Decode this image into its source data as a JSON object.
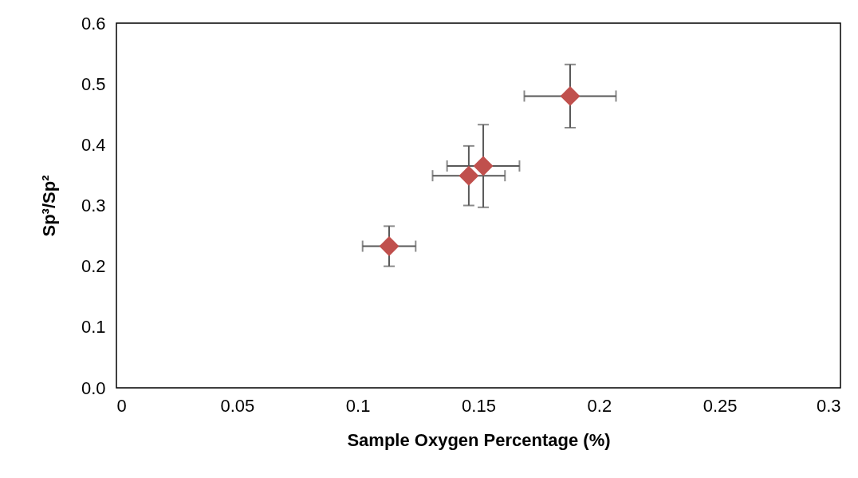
{
  "chart_data": {
    "type": "scatter",
    "xlabel": "Sample Oxygen Percentage (%)",
    "ylabel": "Sp³/Sp²",
    "x": [
      0.113,
      0.146,
      0.152,
      0.188
    ],
    "series": [
      {
        "color": "#c0504d",
        "values": [
          0.233,
          0.349,
          0.365,
          0.48
        ],
        "errors": [
          0.033,
          0.049,
          0.068,
          0.052
        ],
        "xerrors": [
          0.011,
          0.015,
          0.015,
          0.019
        ]
      }
    ],
    "marker": "diamond",
    "xlim": [
      0,
      0.3
    ],
    "xticks": [
      0,
      0.05,
      0.1,
      0.15,
      0.2,
      0.25,
      0.3
    ],
    "ylim": [
      0,
      0.6
    ],
    "yticks": [
      {
        "value": 0,
        "label": "0.0"
      },
      {
        "value": 0.1,
        "label": "0.1"
      },
      {
        "value": 0.2,
        "label": "0.2"
      },
      {
        "value": 0.3,
        "label": "0.3"
      },
      {
        "value": 0.4,
        "label": "0.4"
      },
      {
        "value": 0.5,
        "label": "0.5"
      },
      {
        "value": 0.6,
        "label": "0.6"
      }
    ]
  }
}
